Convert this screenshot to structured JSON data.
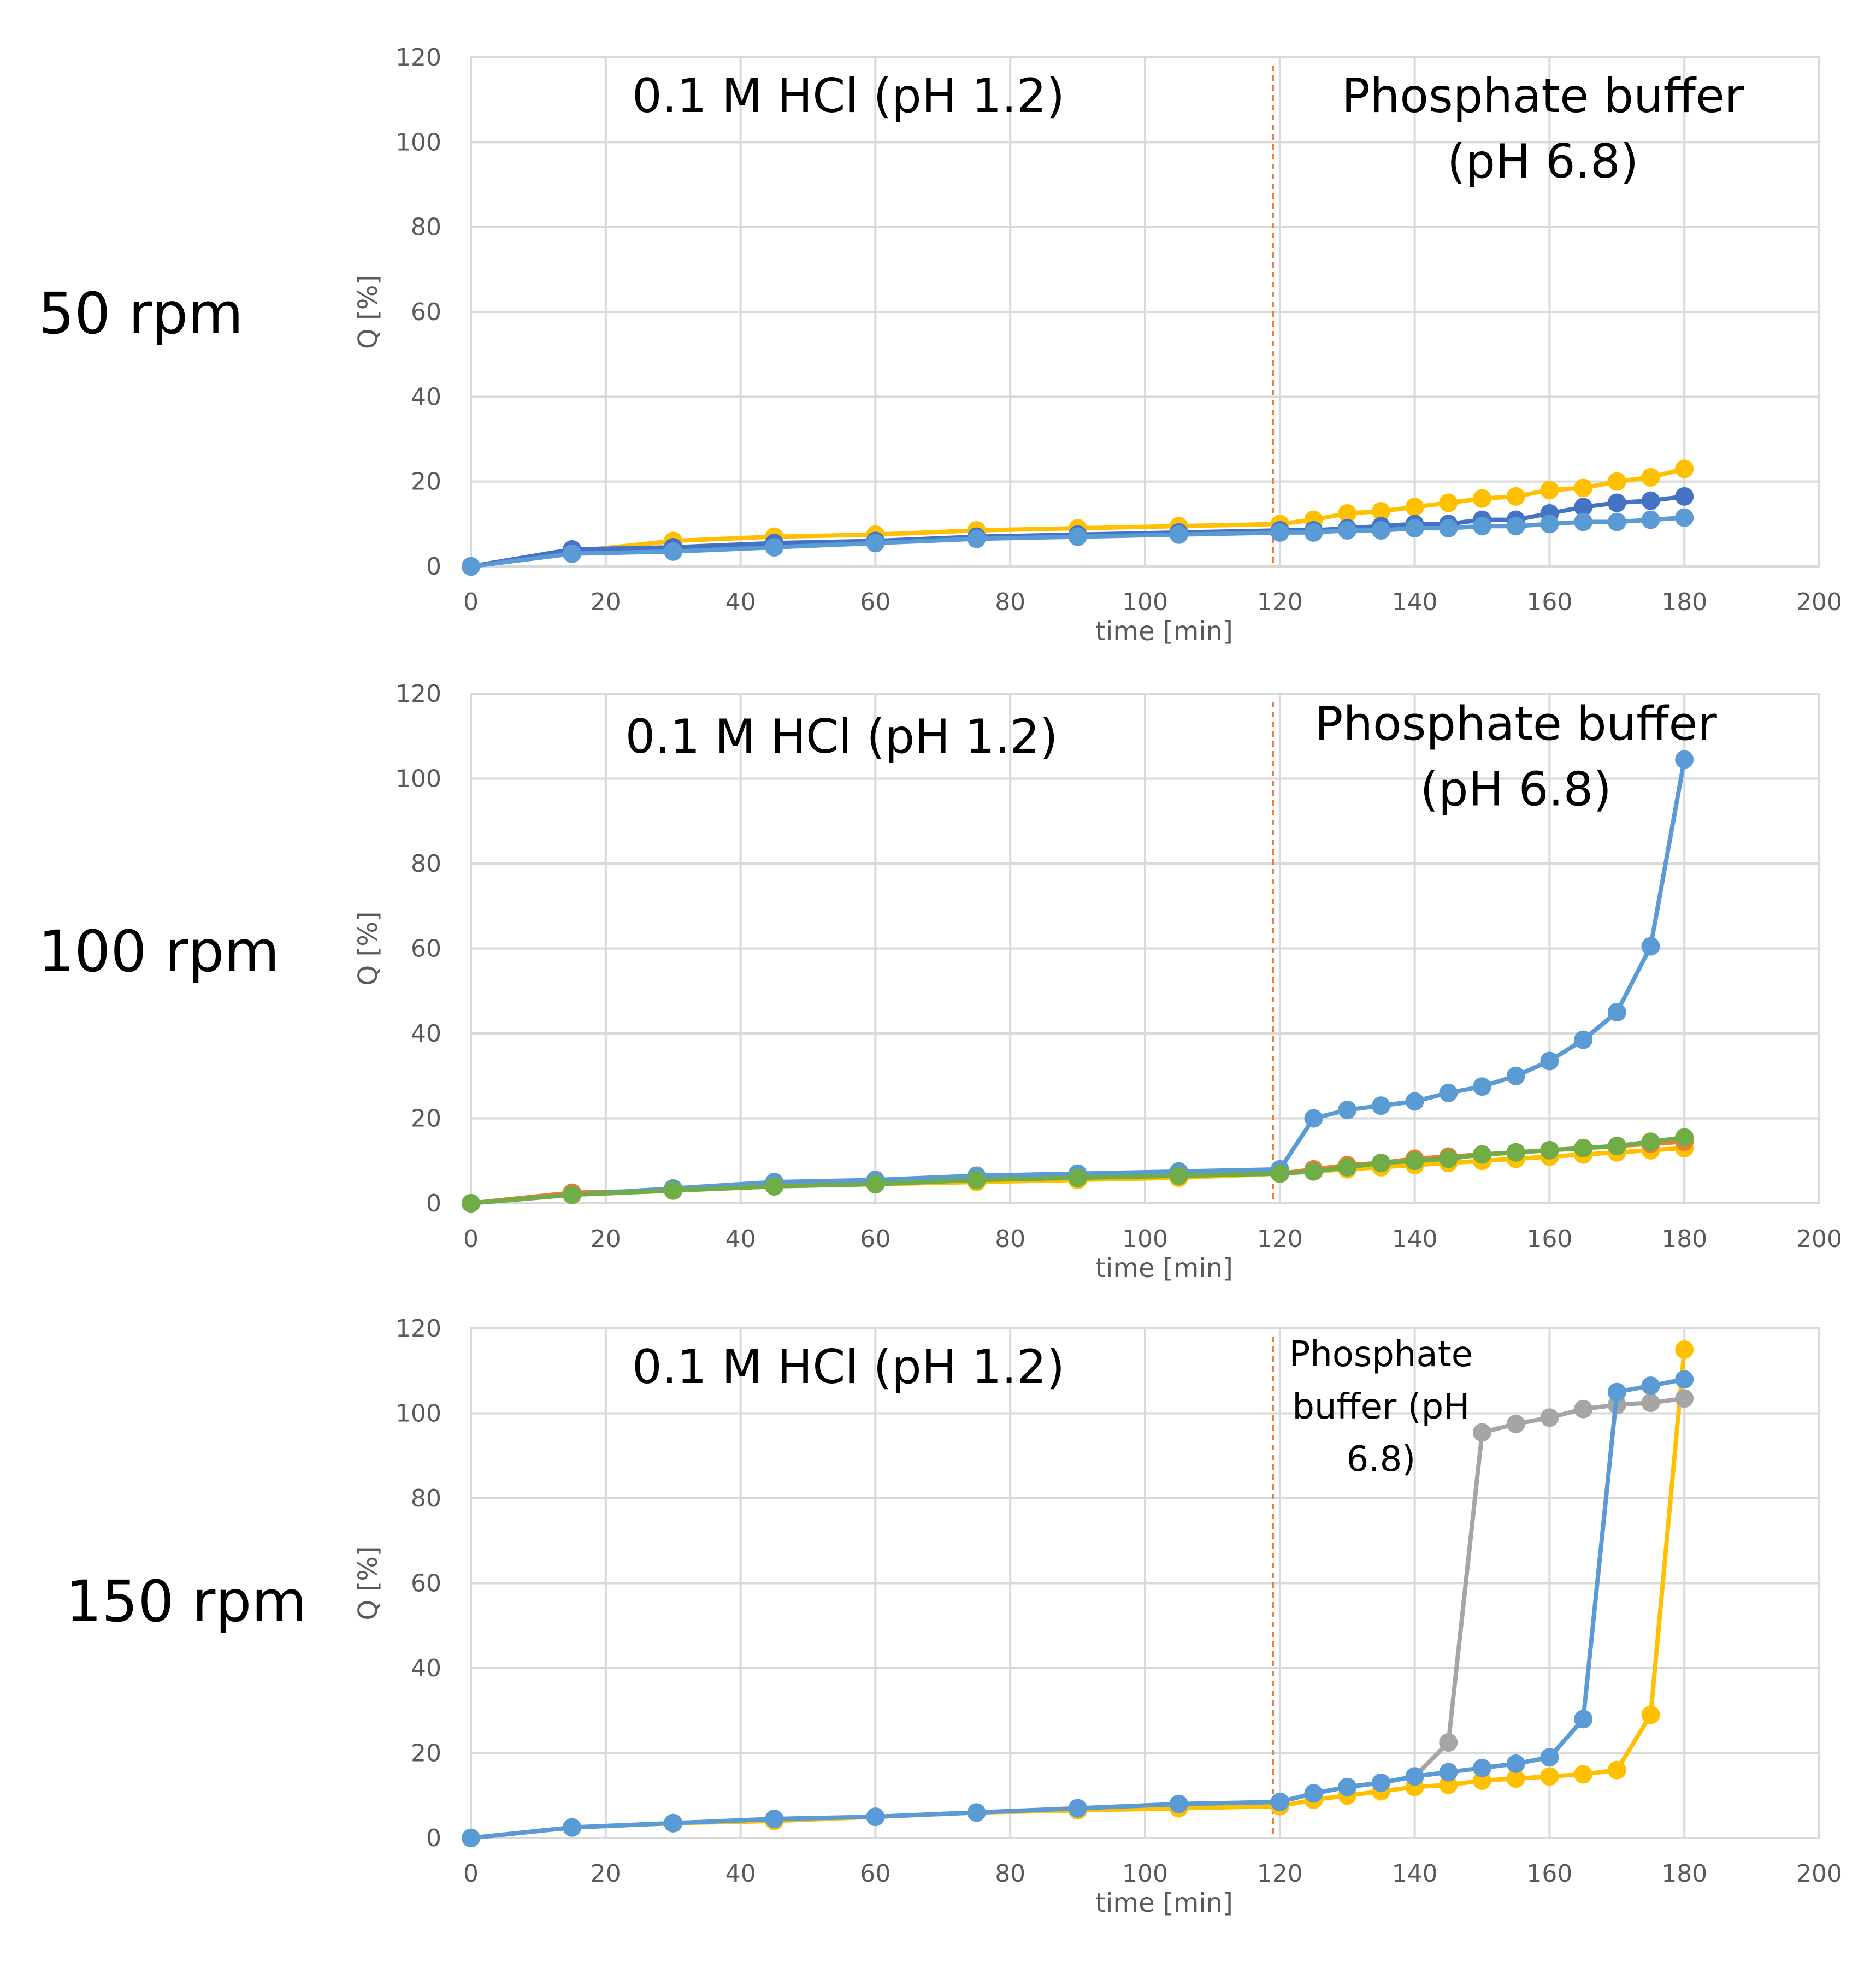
{
  "chart_data": [
    {
      "type": "line",
      "row_label": "50 rpm",
      "xlabel": "time [min]",
      "ylabel": "Q [%]",
      "xlim": [
        0,
        200
      ],
      "ylim": [
        0,
        120
      ],
      "xticks": [
        0,
        20,
        40,
        60,
        80,
        100,
        120,
        140,
        160,
        180,
        200
      ],
      "yticks": [
        0,
        20,
        40,
        60,
        80,
        100,
        120
      ],
      "phase_change_x": 119,
      "annotations": [
        {
          "lines": [
            "0.1 M HCl (pH 1.2)"
          ],
          "x": 56,
          "y": 111,
          "size": "large"
        },
        {
          "lines": [
            "Phosphate buffer",
            "(pH 6.8)"
          ],
          "x": 159,
          "y": 111,
          "size": "large"
        }
      ],
      "series": [
        {
          "name": "series-yellow",
          "color": "#ffc000",
          "x": [
            0,
            15,
            30,
            45,
            60,
            75,
            90,
            105,
            120,
            125,
            130,
            135,
            140,
            145,
            150,
            155,
            160,
            165,
            170,
            175,
            180
          ],
          "y": [
            0,
            3.5,
            6,
            7,
            7.5,
            8.5,
            9,
            9.5,
            10,
            11,
            12.5,
            13,
            14,
            15,
            16,
            16.5,
            18,
            18.5,
            20,
            21,
            23
          ]
        },
        {
          "name": "series-dark-blue",
          "color": "#4472c4",
          "x": [
            0,
            15,
            30,
            45,
            60,
            75,
            90,
            105,
            120,
            125,
            130,
            135,
            140,
            145,
            150,
            155,
            160,
            165,
            170,
            175,
            180
          ],
          "y": [
            0,
            4,
            4.5,
            5.5,
            6,
            7,
            7.5,
            8,
            8.5,
            8.5,
            9,
            9.5,
            10,
            10,
            11,
            11,
            12.5,
            14,
            15,
            15.5,
            16.5
          ]
        },
        {
          "name": "series-light-blue",
          "color": "#5b9bd5",
          "x": [
            0,
            15,
            30,
            45,
            60,
            75,
            90,
            105,
            120,
            125,
            130,
            135,
            140,
            145,
            150,
            155,
            160,
            165,
            170,
            175,
            180
          ],
          "y": [
            0,
            3,
            3.5,
            4.5,
            5.5,
            6.5,
            7,
            7.5,
            8,
            8,
            8.5,
            8.5,
            9,
            9,
            9.5,
            9.5,
            10,
            10.5,
            10.5,
            11,
            11.5
          ]
        }
      ]
    },
    {
      "type": "line",
      "row_label": "100 rpm",
      "xlabel": "time [min]",
      "ylabel": "Q [%]",
      "xlim": [
        0,
        200
      ],
      "ylim": [
        0,
        120
      ],
      "xticks": [
        0,
        20,
        40,
        60,
        80,
        100,
        120,
        140,
        160,
        180,
        200
      ],
      "yticks": [
        0,
        20,
        40,
        60,
        80,
        100,
        120
      ],
      "phase_change_x": 119,
      "annotations": [
        {
          "lines": [
            "0.1 M HCl (pH 1.2)"
          ],
          "x": 55,
          "y": 110,
          "size": "large"
        },
        {
          "lines": [
            "Phosphate buffer",
            "(pH 6.8)"
          ],
          "x": 155,
          "y": 113,
          "size": "large"
        }
      ],
      "series": [
        {
          "name": "series-yellow",
          "color": "#ffc000",
          "x": [
            0,
            15,
            30,
            45,
            60,
            75,
            90,
            105,
            120,
            125,
            130,
            135,
            140,
            145,
            150,
            155,
            160,
            165,
            170,
            175,
            180
          ],
          "y": [
            0,
            2,
            3,
            4,
            4.5,
            5,
            5.5,
            6,
            7,
            7.5,
            8,
            8.5,
            9,
            9.5,
            10,
            10.5,
            11,
            11.5,
            12,
            12.5,
            13
          ]
        },
        {
          "name": "series-orange",
          "color": "#ed7d31",
          "x": [
            0,
            15,
            30,
            45,
            60,
            75,
            90,
            105,
            120,
            125,
            130,
            135,
            140,
            145,
            150,
            155,
            160,
            165,
            170,
            175,
            180
          ],
          "y": [
            0,
            2.5,
            3,
            4,
            5,
            5.5,
            6,
            6.5,
            7,
            8,
            9,
            9.5,
            10.5,
            11,
            11.5,
            12,
            12.5,
            13,
            13.5,
            14,
            14.5
          ]
        },
        {
          "name": "series-light-blue",
          "color": "#5b9bd5",
          "x": [
            0,
            15,
            30,
            45,
            60,
            75,
            90,
            105,
            120,
            125,
            130,
            135,
            140,
            145,
            150,
            155,
            160,
            165,
            170,
            175,
            180
          ],
          "y": [
            0,
            2,
            3.5,
            5,
            5.5,
            6.5,
            7,
            7.5,
            8,
            20,
            22,
            23,
            24,
            26,
            27.5,
            30,
            33.5,
            38.5,
            45,
            60.5,
            104.5
          ]
        },
        {
          "name": "series-green",
          "color": "#70ad47",
          "x": [
            0,
            15,
            30,
            45,
            60,
            75,
            90,
            105,
            120,
            125,
            130,
            135,
            140,
            145,
            150,
            155,
            160,
            165,
            170,
            175,
            180
          ],
          "y": [
            0,
            2,
            3,
            4,
            4.5,
            5.5,
            6,
            6.5,
            7,
            7.5,
            8.5,
            9.5,
            10,
            10.5,
            11.5,
            12,
            12.5,
            13,
            13.5,
            14.5,
            15.5
          ]
        }
      ]
    },
    {
      "type": "line",
      "row_label": "150 rpm",
      "xlabel": "time [min]",
      "ylabel": "Q [%]",
      "xlim": [
        0,
        200
      ],
      "ylim": [
        0,
        120
      ],
      "xticks": [
        0,
        20,
        40,
        60,
        80,
        100,
        120,
        140,
        160,
        180,
        200
      ],
      "yticks": [
        0,
        20,
        40,
        60,
        80,
        100,
        120
      ],
      "phase_change_x": 119,
      "annotations": [
        {
          "lines": [
            "0.1 M HCl (pH 1.2)"
          ],
          "x": 56,
          "y": 111,
          "size": "large"
        },
        {
          "lines": [
            "Phosphate",
            "buffer (pH",
            "6.8)"
          ],
          "x": 135,
          "y": 114,
          "size": "small"
        }
      ],
      "series": [
        {
          "name": "series-yellow",
          "color": "#ffc000",
          "x": [
            0,
            15,
            30,
            45,
            60,
            75,
            90,
            105,
            120,
            125,
            130,
            135,
            140,
            145,
            150,
            155,
            160,
            165,
            170,
            175,
            180
          ],
          "y": [
            0,
            2.5,
            3.5,
            4,
            5,
            6,
            6.5,
            7,
            7.5,
            9,
            10,
            11,
            12,
            12.5,
            13.5,
            14,
            14.5,
            15,
            16,
            29,
            115
          ]
        },
        {
          "name": "series-gray",
          "color": "#a5a5a5",
          "x": [
            0,
            15,
            30,
            45,
            60,
            75,
            90,
            105,
            120,
            125,
            130,
            135,
            140,
            145,
            150,
            155,
            160,
            165,
            170,
            175,
            180
          ],
          "y": [
            0,
            2.5,
            3.5,
            4.5,
            5,
            6,
            7,
            8,
            8.5,
            10.5,
            12,
            13,
            14.5,
            22.5,
            95.5,
            97.5,
            99,
            101,
            102,
            102.5,
            103.5
          ]
        },
        {
          "name": "series-light-blue",
          "color": "#5b9bd5",
          "x": [
            0,
            15,
            30,
            45,
            60,
            75,
            90,
            105,
            120,
            125,
            130,
            135,
            140,
            145,
            150,
            155,
            160,
            165,
            170,
            175,
            180
          ],
          "y": [
            0,
            2.5,
            3.5,
            4.5,
            5,
            6,
            7,
            8,
            8.5,
            10.5,
            12,
            13,
            14.5,
            15.5,
            16.5,
            17.5,
            19,
            28,
            105,
            106.5,
            108
          ]
        }
      ]
    }
  ]
}
